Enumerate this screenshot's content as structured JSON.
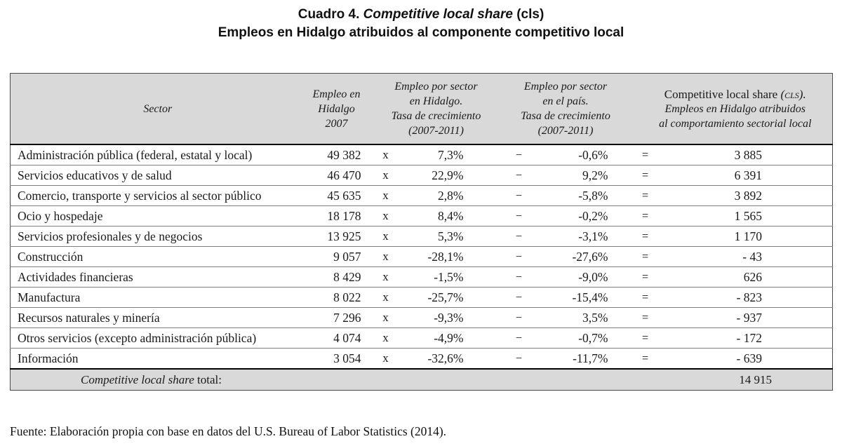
{
  "title": {
    "line1_prefix": "Cuadro 4. ",
    "line1_italic": "Competitive local share",
    "line1_suffix": " (cls)",
    "line2": "Empleos en Hidalgo atribuidos al componente competitivo local"
  },
  "table": {
    "headers": {
      "sector": "Sector",
      "empleo_lines": [
        "Empleo en",
        "Hidalgo",
        "2007"
      ],
      "growth_hidalgo_lines": [
        "Empleo por sector",
        "en Hidalgo.",
        "Tasa de crecimiento",
        "(2007-2011)"
      ],
      "growth_pais_lines": [
        "Empleo por sector",
        "en el país.",
        "Tasa de crecimiento",
        "(2007-2011)"
      ],
      "cls_line1_roman": "Competitive local share ",
      "cls_line1_caps": "(cls).",
      "cls_line2": "Empleos en Hidalgo atribuidos",
      "cls_line3": "al comportamiento sectorial local"
    },
    "operators": {
      "multiply": "x",
      "minus": "−",
      "equals": "="
    },
    "rows": [
      {
        "sector": "Administración pública (federal, estatal y local)",
        "empleo": "49 382",
        "growth_hidalgo": "7,3%",
        "growth_pais": "-0,6%",
        "cls": "3 885"
      },
      {
        "sector": "Servicios educativos y de salud",
        "empleo": "46 470",
        "growth_hidalgo": "22,9%",
        "growth_pais": "9,2%",
        "cls": "6 391"
      },
      {
        "sector": "Comercio, transporte y servicios al sector público",
        "empleo": "45 635",
        "growth_hidalgo": "2,8%",
        "growth_pais": "-5,8%",
        "cls": "3 892"
      },
      {
        "sector": "Ocio y hospedaje",
        "empleo": "18 178",
        "growth_hidalgo": "8,4%",
        "growth_pais": "-0,2%",
        "cls": "1 565"
      },
      {
        "sector": "Servicios profesionales y de negocios",
        "empleo": "13 925",
        "growth_hidalgo": "5,3%",
        "growth_pais": "-3,1%",
        "cls": "1 170"
      },
      {
        "sector": "Construcción",
        "empleo": "9 057",
        "growth_hidalgo": "-28,1%",
        "growth_pais": "-27,6%",
        "cls": "- 43"
      },
      {
        "sector": "Actividades financieras",
        "empleo": "8 429",
        "growth_hidalgo": "-1,5%",
        "growth_pais": "-9,0%",
        "cls": "626"
      },
      {
        "sector": "Manufactura",
        "empleo": "8 022",
        "growth_hidalgo": "-25,7%",
        "growth_pais": "-15,4%",
        "cls": "- 823"
      },
      {
        "sector": "Recursos naturales y minería",
        "empleo": "7 296",
        "growth_hidalgo": "-9,3%",
        "growth_pais": "3,5%",
        "cls": "- 937"
      },
      {
        "sector": "Otros servicios (excepto administración pública)",
        "empleo": "4 074",
        "growth_hidalgo": "-4,9%",
        "growth_pais": "-0,7%",
        "cls": "- 172"
      },
      {
        "sector": "Información",
        "empleo": "3 054",
        "growth_hidalgo": "-32,6%",
        "growth_pais": "-11,7%",
        "cls": "- 639"
      }
    ],
    "total": {
      "label_italic": "Competitive local share",
      "label_roman": " total:",
      "value": "14 915"
    }
  },
  "source": "Fuente: Elaboración propia con base en datos del U.S. Bureau of Labor Statistics (2014).",
  "colors": {
    "header_background": "#d9d9d9",
    "text": "#1a1a1a",
    "rule": "#000000"
  }
}
